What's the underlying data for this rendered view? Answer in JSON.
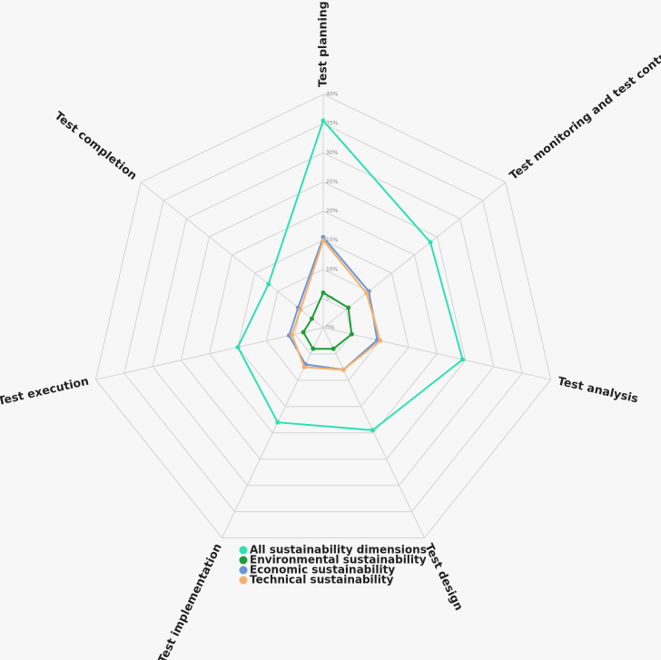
{
  "chart_data": {
    "type": "radar",
    "categories": [
      "Test planning",
      "Test monitoring and test control",
      "Test analysis",
      "Test design",
      "Test implementation",
      "Test execution",
      "Test completion"
    ],
    "ylim": [
      0,
      40
    ],
    "yticks": [
      {
        "value": 0,
        "label": "0%"
      },
      {
        "value": 5,
        "label": "5%"
      },
      {
        "value": 10,
        "label": "10%"
      },
      {
        "value": 15,
        "label": "15%"
      },
      {
        "value": 20,
        "label": "20%"
      },
      {
        "value": 25,
        "label": "25%"
      },
      {
        "value": 30,
        "label": "30%"
      },
      {
        "value": 35,
        "label": "35%"
      },
      {
        "value": 40,
        "label": "40%"
      }
    ],
    "grid": true,
    "legend": "bottom",
    "series": [
      {
        "name": "All sustainability dimensions",
        "color": "#2de0b0",
        "values": [
          35.5,
          23.5,
          24.5,
          19.5,
          18,
          15,
          12
        ]
      },
      {
        "name": "Environmental sustainability",
        "color": "#1e9e3a",
        "values": [
          6,
          5.5,
          5,
          4,
          4,
          3.5,
          2.5
        ]
      },
      {
        "name": "Economic sustainability",
        "color": "#6a96d8",
        "values": [
          15.5,
          10,
          9.5,
          8,
          7,
          6,
          5.5
        ]
      },
      {
        "name": "Technical sustainability",
        "color": "#f5b06a",
        "values": [
          15,
          9.5,
          10,
          8,
          7.5,
          5.5,
          5
        ]
      }
    ]
  }
}
